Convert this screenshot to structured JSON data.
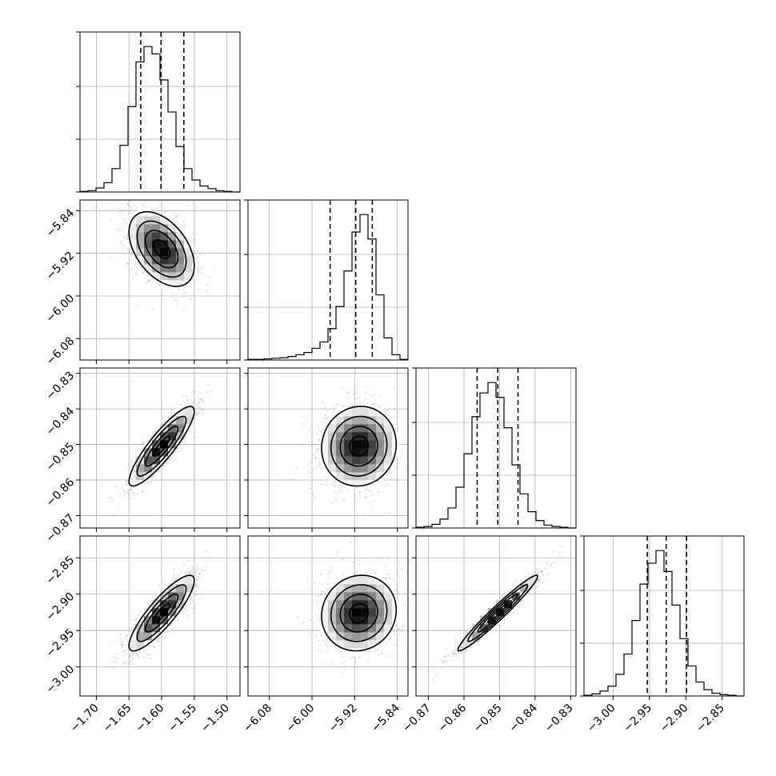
{
  "chart_data": {
    "type": "corner",
    "title": "",
    "parameters": [
      {
        "range": [
          -1.725,
          -1.48
        ],
        "ticks": [
          -1.7,
          -1.65,
          -1.6,
          -1.55,
          -1.5
        ],
        "tick_labels": [
          "−1.70",
          "−1.65",
          "−1.60",
          "−1.55",
          "−1.50"
        ],
        "quantiles": [
          -1.632,
          -1.601,
          -1.566
        ],
        "mean": -1.6,
        "sd": 0.025
      },
      {
        "range": [
          -6.12,
          -5.82
        ],
        "ticks": [
          -6.08,
          -6.0,
          -5.92,
          -5.84
        ],
        "tick_labels": [
          "−6.08",
          "−6.00",
          "−5.92",
          "−5.84"
        ],
        "quantiles": [
          -5.966,
          -5.918,
          -5.887
        ],
        "mean": -5.912,
        "sd": 0.035
      },
      {
        "range": [
          -0.8735,
          -0.8285
        ],
        "ticks": [
          -0.87,
          -0.86,
          -0.85,
          -0.84,
          -0.83
        ],
        "tick_labels": [
          "−0.87",
          "−0.86",
          "−0.85",
          "−0.84",
          "−0.83"
        ],
        "quantiles": [
          -0.8563,
          -0.8505,
          -0.8448
        ],
        "mean": -0.8505,
        "sd": 0.0056
      },
      {
        "range": [
          -3.04,
          -2.82
        ],
        "ticks": [
          -3.0,
          -2.95,
          -2.9,
          -2.85
        ],
        "tick_labels": [
          "−3.00",
          "−2.95",
          "−2.90",
          "−2.85"
        ],
        "quantiles": [
          -2.953,
          -2.927,
          -2.899
        ],
        "mean": -2.926,
        "sd": 0.026
      }
    ],
    "histograms": [
      {
        "bins": 20,
        "counts": [
          1,
          2,
          6,
          14,
          35,
          70,
          128,
          195,
          218,
          207,
          168,
          120,
          68,
          35,
          18,
          9,
          5,
          2,
          1,
          0
        ]
      },
      {
        "bins": 20,
        "counts": [
          1,
          1,
          2,
          3,
          4,
          6,
          9,
          13,
          20,
          31,
          54,
          92,
          153,
          220,
          250,
          208,
          112,
          38,
          9,
          1
        ]
      },
      {
        "bins": 20,
        "counts": [
          1,
          2,
          5,
          12,
          27,
          55,
          100,
          150,
          182,
          196,
          176,
          135,
          85,
          46,
          22,
          10,
          4,
          2,
          1,
          0
        ]
      },
      {
        "bins": 20,
        "counts": [
          1,
          3,
          7,
          14,
          31,
          60,
          108,
          160,
          190,
          208,
          178,
          130,
          82,
          43,
          20,
          9,
          4,
          2,
          1,
          0
        ]
      }
    ],
    "correlations": [
      {
        "pair": [
          1,
          0
        ],
        "rho": -0.45
      },
      {
        "pair": [
          2,
          0
        ],
        "rho": 0.88
      },
      {
        "pair": [
          2,
          1
        ],
        "rho": 0.05
      },
      {
        "pair": [
          3,
          0
        ],
        "rho": 0.86
      },
      {
        "pair": [
          3,
          1
        ],
        "rho": 0.08
      },
      {
        "pair": [
          3,
          2
        ],
        "rho": 0.97
      }
    ],
    "grid": true
  }
}
